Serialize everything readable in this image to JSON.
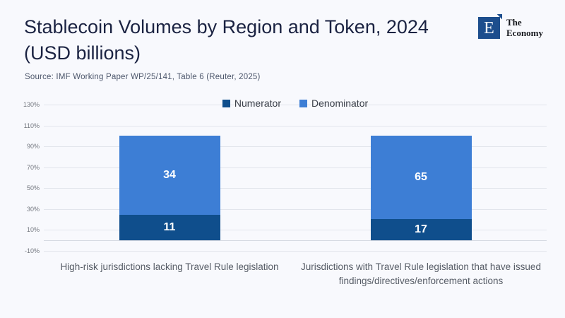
{
  "page": {
    "background": "#f8f9fd"
  },
  "header": {
    "title": "Stablecoin Volumes by Region and Token, 2024 (USD billions)",
    "source": "Source: IMF Working Paper WP/25/141, Table 6 (Reuter, 2025)",
    "logo": {
      "letter": "E",
      "name_line1": "The",
      "name_line2": "Economy",
      "square_color": "#1d4e8d"
    }
  },
  "chart_data": {
    "type": "bar",
    "stacked": true,
    "stack_mode": "percent",
    "title": "Stablecoin Volumes by Region and Token, 2024 (USD billions)",
    "categories": [
      "High-risk jurisdictions lacking Travel Rule legislation",
      "Jurisdictions with Travel Rule legislation that have issued findings/directives/enforcement actions"
    ],
    "series": [
      {
        "name": "Numerator",
        "color": "#0f4e8c",
        "values": [
          11,
          17
        ]
      },
      {
        "name": "Denominator",
        "color": "#3d7ed5",
        "values": [
          34,
          65
        ]
      }
    ],
    "segment_percents": [
      {
        "category_index": 0,
        "Numerator": 24.4,
        "Denominator": 75.6
      },
      {
        "category_index": 1,
        "Numerator": 20.7,
        "Denominator": 79.3
      }
    ],
    "xlabel": "",
    "ylabel": "",
    "ylim": [
      -10,
      130
    ],
    "y_ticks": [
      "130%",
      "110%",
      "90%",
      "70%",
      "50%",
      "30%",
      "10%",
      "-10%"
    ],
    "baseline_value": 0,
    "grid": true,
    "legend_position": "top-center",
    "value_labels_shown": true
  }
}
